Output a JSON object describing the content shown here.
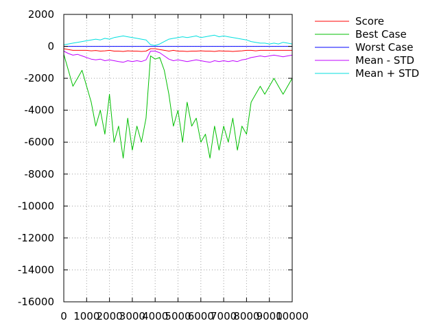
{
  "chart_data": {
    "type": "line",
    "title": "",
    "xlabel": "",
    "ylabel": "",
    "xlim": [
      0,
      10000
    ],
    "ylim": [
      -16000,
      2000
    ],
    "x_ticks": [
      0,
      1000,
      2000,
      3000,
      4000,
      5000,
      6000,
      7000,
      8000,
      9000,
      10000
    ],
    "y_ticks": [
      2000,
      0,
      -2000,
      -4000,
      -6000,
      -8000,
      -10000,
      -12000,
      -14000,
      -16000
    ],
    "grid": true,
    "legend_position": "top-right outside plot",
    "series": [
      {
        "name": "Score",
        "color": "#ff0000",
        "draw_order": 5,
        "x": [
          0,
          200,
          400,
          600,
          800,
          1000,
          1200,
          1400,
          1600,
          1800,
          2000,
          2200,
          2400,
          2600,
          2800,
          3000,
          3200,
          3400,
          3600,
          3800,
          4000,
          4200,
          4400,
          4600,
          4800,
          5000,
          5200,
          5400,
          5600,
          5800,
          6000,
          6200,
          6400,
          6600,
          6800,
          7000,
          7200,
          7400,
          7600,
          7800,
          8000,
          8200,
          8400,
          8600,
          8800,
          9000,
          9200,
          9400,
          9600,
          9800,
          10000
        ],
        "y": [
          -150,
          -200,
          -250,
          -250,
          -250,
          -250,
          -280,
          -260,
          -300,
          -280,
          -250,
          -300,
          -300,
          -320,
          -280,
          -300,
          -300,
          -320,
          -300,
          -150,
          -150,
          -200,
          -250,
          -300,
          -250,
          -300,
          -300,
          -320,
          -300,
          -300,
          -280,
          -300,
          -300,
          -320,
          -280,
          -300,
          -300,
          -320,
          -300,
          -280,
          -250,
          -250,
          -280,
          -250,
          -250,
          -250,
          -250,
          -250,
          -250,
          -250,
          -250
        ]
      },
      {
        "name": "Best Case",
        "color": "#00bf00",
        "draw_order": 1,
        "x": [
          0,
          200,
          400,
          600,
          800,
          1000,
          1200,
          1400,
          1600,
          1800,
          2000,
          2200,
          2400,
          2600,
          2800,
          3000,
          3200,
          3400,
          3600,
          3800,
          4000,
          4200,
          4400,
          4600,
          4800,
          5000,
          5200,
          5400,
          5600,
          5800,
          6000,
          6200,
          6400,
          6600,
          6800,
          7000,
          7200,
          7400,
          7600,
          7800,
          8000,
          8200,
          8400,
          8600,
          8800,
          9000,
          9200,
          9400,
          9600,
          9800,
          10000
        ],
        "y": [
          -500,
          -1500,
          -2500,
          -2000,
          -1500,
          -2500,
          -3500,
          -5000,
          -4000,
          -5500,
          -3000,
          -6000,
          -5000,
          -7000,
          -4500,
          -6500,
          -5000,
          -6000,
          -4500,
          -600,
          -800,
          -700,
          -1500,
          -3000,
          -5000,
          -4000,
          -6000,
          -3500,
          -5000,
          -4500,
          -6000,
          -5500,
          -7000,
          -5000,
          -6500,
          -5000,
          -6000,
          -4500,
          -6500,
          -5000,
          -5500,
          -3500,
          -3000,
          -2500,
          -3000,
          -2500,
          -2000,
          -2500,
          -3000,
          -2500,
          -2000
        ]
      },
      {
        "name": "Worst Case",
        "color": "#0000ff",
        "draw_order": 4,
        "x": [
          0,
          10000
        ],
        "y": [
          0,
          0
        ]
      },
      {
        "name": "Mean - STD",
        "color": "#bf00ff",
        "draw_order": 2,
        "x": [
          0,
          200,
          400,
          600,
          800,
          1000,
          1200,
          1400,
          1600,
          1800,
          2000,
          2200,
          2400,
          2600,
          2800,
          3000,
          3200,
          3400,
          3600,
          3800,
          4000,
          4200,
          4400,
          4600,
          4800,
          5000,
          5200,
          5400,
          5600,
          5800,
          6000,
          6200,
          6400,
          6600,
          6800,
          7000,
          7200,
          7400,
          7600,
          7800,
          8000,
          8200,
          8400,
          8600,
          8800,
          9000,
          9200,
          9400,
          9600,
          9800,
          10000
        ],
        "y": [
          -300,
          -450,
          -550,
          -500,
          -600,
          -700,
          -800,
          -850,
          -800,
          -900,
          -850,
          -900,
          -950,
          -1000,
          -900,
          -950,
          -900,
          -950,
          -850,
          -300,
          -300,
          -400,
          -600,
          -800,
          -900,
          -850,
          -900,
          -950,
          -900,
          -850,
          -900,
          -950,
          -1000,
          -900,
          -950,
          -900,
          -950,
          -900,
          -950,
          -850,
          -800,
          -700,
          -650,
          -600,
          -650,
          -600,
          -550,
          -600,
          -650,
          -600,
          -550
        ]
      },
      {
        "name": "Mean + STD",
        "color": "#00dfdf",
        "draw_order": 3,
        "x": [
          0,
          200,
          400,
          600,
          800,
          1000,
          1200,
          1400,
          1600,
          1800,
          2000,
          2200,
          2400,
          2600,
          2800,
          3000,
          3200,
          3400,
          3600,
          3800,
          4000,
          4200,
          4400,
          4600,
          4800,
          5000,
          5200,
          5400,
          5600,
          5800,
          6000,
          6200,
          6400,
          6600,
          6800,
          7000,
          7200,
          7400,
          7600,
          7800,
          8000,
          8200,
          8400,
          8600,
          8800,
          9000,
          9200,
          9400,
          9600,
          9800,
          10000
        ],
        "y": [
          100,
          150,
          200,
          250,
          300,
          350,
          400,
          450,
          400,
          500,
          450,
          550,
          600,
          650,
          600,
          550,
          500,
          450,
          400,
          100,
          50,
          150,
          300,
          450,
          500,
          550,
          600,
          550,
          600,
          650,
          550,
          600,
          650,
          700,
          600,
          650,
          600,
          550,
          500,
          450,
          400,
          300,
          250,
          200,
          200,
          150,
          200,
          150,
          250,
          200,
          150
        ]
      }
    ]
  }
}
